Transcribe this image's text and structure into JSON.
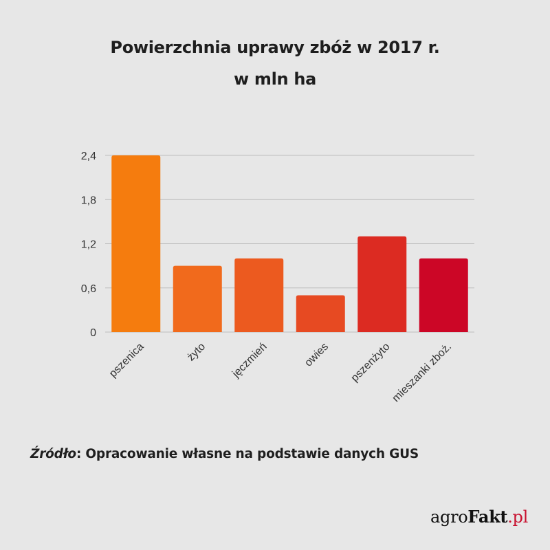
{
  "chart_data": {
    "type": "bar",
    "title": "Powierzchnia uprawy zbóż w 2017 r.",
    "subtitle": "w mln ha",
    "categories": [
      "pszenica",
      "żyto",
      "jęczmień",
      "owies",
      "pszenżyto",
      "mieszanki zboż."
    ],
    "values": [
      2.4,
      0.9,
      1.0,
      0.5,
      1.3,
      1.0
    ],
    "ylim": [
      0,
      2.4
    ],
    "yticks": [
      "0",
      "0,6",
      "1,2",
      "1,8",
      "2,4"
    ],
    "ytick_values": [
      0,
      0.6,
      1.2,
      1.8,
      2.4
    ],
    "grid": true,
    "colors": [
      "#f57c0e",
      "#f16a1c",
      "#ec5a1f",
      "#e74a22",
      "#dc2b22",
      "#cc0626"
    ],
    "xlabel": "",
    "ylabel": ""
  },
  "source": {
    "label": "Źródło",
    "separator": ": ",
    "text": "Opracowanie własne na podstawie danych GUS"
  },
  "logo": {
    "part1": "agro",
    "part2": "Fakt",
    "part3": ".pl"
  }
}
